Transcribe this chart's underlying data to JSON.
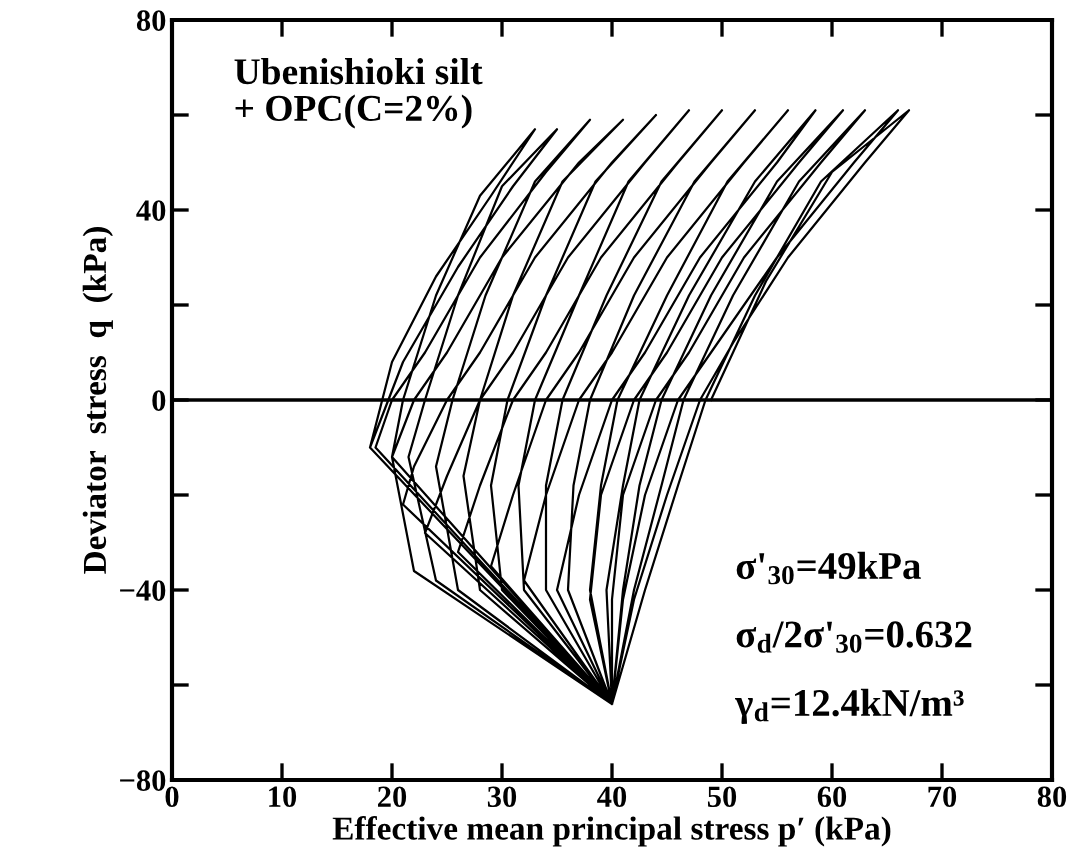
{
  "chart_data": {
    "type": "line",
    "xlabel": "Effective mean principal stress p′ (kPa)",
    "ylabel": "Deviator  stress  q  (kPa)",
    "xlim": [
      0,
      80
    ],
    "ylim": [
      -80,
      80
    ],
    "xticks": [
      0,
      10,
      20,
      30,
      40,
      50,
      60,
      70,
      80
    ],
    "yticks": [
      -80,
      {
        "value": -60,
        "label": null
      },
      -40,
      {
        "value": -20,
        "label": null
      },
      0,
      {
        "value": 20,
        "label": null
      },
      40,
      {
        "value": 60,
        "label": null
      },
      80
    ],
    "grid": false,
    "marker": "none",
    "line_style": "solid",
    "ref_lines": [
      {
        "axis": "y",
        "value": 0,
        "color": "#000000"
      }
    ],
    "annotations": [
      "Ubenishioki silt\n+ OPC(C=2%)",
      "σ'$_{30}$=49kPa",
      "σ$_{d}$/2σ'$_{30}$=0.632",
      "γ$_{d}$=12.4kN/m³"
    ],
    "series": [
      {
        "color": "#000000",
        "x": [
          49,
          54,
          60,
          67,
          63,
          56,
          51,
          48,
          45,
          42,
          40,
          43,
          46,
          48.5,
          53,
          59,
          66,
          62,
          55,
          49,
          46,
          43,
          41,
          40,
          42,
          44.5,
          46.5,
          51,
          57,
          63,
          59,
          52,
          47,
          44,
          41,
          40,
          40,
          41,
          42.5,
          44.5,
          49,
          55,
          61,
          57,
          50,
          45,
          42,
          39,
          38,
          40,
          39.5,
          41,
          42.5,
          47,
          53,
          58.5,
          55,
          48,
          43,
          40,
          37,
          35,
          40,
          38,
          39,
          40.5,
          45,
          50.5,
          56,
          52,
          45,
          40,
          37,
          34,
          32,
          40,
          36,
          36.5,
          38,
          42,
          47.5,
          53,
          49,
          42,
          37,
          34,
          31,
          29,
          40,
          34,
          34,
          35.5,
          39.5,
          44.5,
          50,
          46,
          39,
          34,
          31,
          28,
          26,
          40,
          32,
          31.5,
          33,
          37,
          41.5,
          47,
          43,
          36,
          31,
          28,
          25,
          23,
          40,
          30,
          29,
          30.5,
          34,
          38.5,
          44,
          40,
          33,
          28,
          25,
          22,
          21,
          40,
          28,
          26.5,
          28,
          31,
          35.5,
          41,
          37,
          30,
          25,
          22,
          20,
          40,
          26,
          24,
          25.5,
          28.5,
          33,
          38,
          34,
          28,
          23,
          20,
          18.5,
          40,
          24,
          21.5,
          23,
          26,
          30,
          35,
          31,
          26,
          21,
          18,
          40,
          22,
          20,
          21,
          24,
          28,
          33,
          29,
          24,
          20,
          18,
          40
        ],
        "values": [
          0,
          25,
          48,
          61,
          50,
          30,
          12,
          0,
          -20,
          -42,
          -64,
          -40,
          -18,
          0,
          22,
          46,
          61,
          50,
          30,
          10,
          0,
          -20,
          -42,
          -64,
          -40,
          -18,
          0,
          22,
          46,
          61,
          50,
          30,
          10,
          0,
          -20,
          -42,
          -64,
          -40,
          -18,
          0,
          22,
          46,
          61,
          50,
          30,
          10,
          0,
          -20,
          -42,
          -64,
          -40,
          -18,
          0,
          22,
          46,
          61,
          50,
          30,
          10,
          0,
          -20,
          -40,
          -64,
          -40,
          -18,
          0,
          22,
          46,
          61,
          50,
          30,
          10,
          0,
          -20,
          -38,
          -64,
          -40,
          -18,
          0,
          22,
          46,
          61,
          50,
          30,
          10,
          0,
          -20,
          -35,
          -64,
          -40,
          -18,
          0,
          22,
          46,
          61,
          50,
          30,
          10,
          0,
          -18,
          -32,
          -64,
          -40,
          -18,
          0,
          22,
          46,
          61,
          50,
          30,
          10,
          0,
          -16,
          -28,
          -64,
          -40,
          -18,
          0,
          22,
          46,
          60,
          50,
          30,
          10,
          0,
          -14,
          -22,
          -64,
          -40,
          -16,
          0,
          22,
          46,
          59,
          50,
          30,
          10,
          0,
          -12,
          -64,
          -40,
          -14,
          0,
          22,
          46,
          59,
          48,
          30,
          10,
          0,
          -10,
          -64,
          -38,
          -12,
          0,
          22,
          45,
          57,
          45,
          28,
          8,
          -10,
          -64,
          -36,
          -12,
          0,
          22,
          43,
          57,
          43,
          26,
          8,
          -10,
          -64
        ]
      }
    ]
  }
}
